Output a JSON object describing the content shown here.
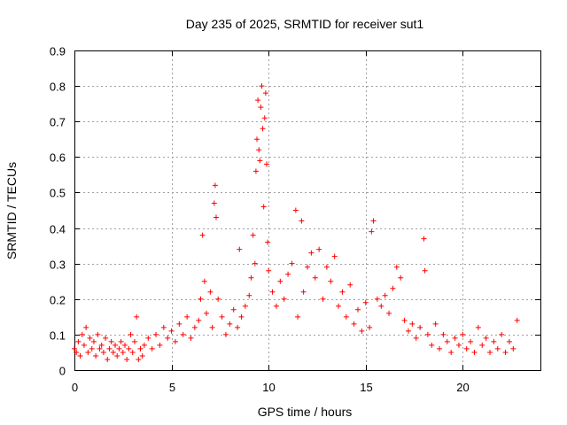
{
  "chart_data": {
    "type": "scatter",
    "title": "Day 235 of 2025, SRMTID for receiver sut1",
    "xlabel": "GPS time / hours",
    "ylabel": "SRMTID / TECUs",
    "xlim": [
      0,
      24
    ],
    "ylim": [
      0,
      0.9
    ],
    "xticks": [
      0,
      5,
      10,
      15,
      20
    ],
    "yticks": [
      0,
      0.1,
      0.2,
      0.3,
      0.4,
      0.5,
      0.6,
      0.7,
      0.8,
      0.9
    ],
    "xtick_labels": [
      "0",
      "5",
      "10",
      "15",
      "20"
    ],
    "ytick_labels": [
      "0",
      "0.1",
      "0.2",
      "0.3",
      "0.4",
      "0.5",
      "0.6",
      "0.7",
      "0.8",
      "0.9"
    ],
    "grid": true,
    "marker": "plus",
    "series": [
      {
        "name": "sut1",
        "color": "#ff0000",
        "points": [
          [
            0.0,
            0.06
          ],
          [
            0.1,
            0.05
          ],
          [
            0.2,
            0.08
          ],
          [
            0.3,
            0.04
          ],
          [
            0.4,
            0.1
          ],
          [
            0.5,
            0.07
          ],
          [
            0.6,
            0.12
          ],
          [
            0.7,
            0.05
          ],
          [
            0.8,
            0.09
          ],
          [
            0.9,
            0.06
          ],
          [
            1.0,
            0.08
          ],
          [
            1.1,
            0.04
          ],
          [
            1.2,
            0.1
          ],
          [
            1.3,
            0.06
          ],
          [
            1.4,
            0.07
          ],
          [
            1.5,
            0.05
          ],
          [
            1.6,
            0.09
          ],
          [
            1.7,
            0.03
          ],
          [
            1.8,
            0.06
          ],
          [
            1.9,
            0.08
          ],
          [
            2.0,
            0.05
          ],
          [
            2.1,
            0.07
          ],
          [
            2.2,
            0.04
          ],
          [
            2.3,
            0.06
          ],
          [
            2.4,
            0.08
          ],
          [
            2.5,
            0.05
          ],
          [
            2.6,
            0.07
          ],
          [
            2.7,
            0.03
          ],
          [
            2.8,
            0.06
          ],
          [
            2.9,
            0.1
          ],
          [
            3.0,
            0.05
          ],
          [
            3.1,
            0.08
          ],
          [
            3.2,
            0.15
          ],
          [
            3.3,
            0.03
          ],
          [
            3.4,
            0.06
          ],
          [
            3.5,
            0.04
          ],
          [
            3.6,
            0.07
          ],
          [
            3.8,
            0.09
          ],
          [
            4.0,
            0.06
          ],
          [
            4.2,
            0.1
          ],
          [
            4.4,
            0.07
          ],
          [
            4.6,
            0.12
          ],
          [
            4.8,
            0.09
          ],
          [
            5.0,
            0.11
          ],
          [
            5.2,
            0.08
          ],
          [
            5.4,
            0.13
          ],
          [
            5.6,
            0.1
          ],
          [
            5.8,
            0.15
          ],
          [
            6.0,
            0.09
          ],
          [
            6.2,
            0.12
          ],
          [
            6.4,
            0.14
          ],
          [
            6.5,
            0.2
          ],
          [
            6.6,
            0.38
          ],
          [
            6.7,
            0.25
          ],
          [
            6.8,
            0.16
          ],
          [
            7.0,
            0.22
          ],
          [
            7.1,
            0.12
          ],
          [
            7.2,
            0.47
          ],
          [
            7.25,
            0.52
          ],
          [
            7.3,
            0.43
          ],
          [
            7.4,
            0.2
          ],
          [
            7.6,
            0.15
          ],
          [
            7.8,
            0.1
          ],
          [
            8.0,
            0.13
          ],
          [
            8.2,
            0.17
          ],
          [
            8.4,
            0.12
          ],
          [
            8.5,
            0.34
          ],
          [
            8.6,
            0.15
          ],
          [
            8.8,
            0.18
          ],
          [
            9.0,
            0.21
          ],
          [
            9.1,
            0.26
          ],
          [
            9.2,
            0.38
          ],
          [
            9.3,
            0.3
          ],
          [
            9.35,
            0.56
          ],
          [
            9.4,
            0.65
          ],
          [
            9.45,
            0.76
          ],
          [
            9.5,
            0.62
          ],
          [
            9.55,
            0.59
          ],
          [
            9.6,
            0.74
          ],
          [
            9.65,
            0.8
          ],
          [
            9.7,
            0.68
          ],
          [
            9.75,
            0.46
          ],
          [
            9.8,
            0.71
          ],
          [
            9.85,
            0.78
          ],
          [
            9.9,
            0.58
          ],
          [
            9.95,
            0.36
          ],
          [
            10.0,
            0.28
          ],
          [
            10.2,
            0.22
          ],
          [
            10.4,
            0.18
          ],
          [
            10.6,
            0.25
          ],
          [
            10.8,
            0.2
          ],
          [
            11.0,
            0.27
          ],
          [
            11.2,
            0.3
          ],
          [
            11.4,
            0.45
          ],
          [
            11.5,
            0.15
          ],
          [
            11.7,
            0.42
          ],
          [
            11.8,
            0.22
          ],
          [
            12.0,
            0.29
          ],
          [
            12.2,
            0.33
          ],
          [
            12.4,
            0.26
          ],
          [
            12.6,
            0.34
          ],
          [
            12.8,
            0.2
          ],
          [
            13.0,
            0.29
          ],
          [
            13.2,
            0.25
          ],
          [
            13.4,
            0.32
          ],
          [
            13.6,
            0.18
          ],
          [
            13.8,
            0.22
          ],
          [
            14.0,
            0.15
          ],
          [
            14.2,
            0.24
          ],
          [
            14.4,
            0.13
          ],
          [
            14.6,
            0.17
          ],
          [
            14.8,
            0.11
          ],
          [
            15.0,
            0.19
          ],
          [
            15.2,
            0.12
          ],
          [
            15.3,
            0.39
          ],
          [
            15.4,
            0.42
          ],
          [
            15.6,
            0.2
          ],
          [
            15.8,
            0.18
          ],
          [
            16.0,
            0.21
          ],
          [
            16.2,
            0.16
          ],
          [
            16.4,
            0.23
          ],
          [
            16.6,
            0.29
          ],
          [
            16.8,
            0.26
          ],
          [
            17.0,
            0.14
          ],
          [
            17.2,
            0.11
          ],
          [
            17.4,
            0.13
          ],
          [
            17.6,
            0.09
          ],
          [
            17.8,
            0.12
          ],
          [
            18.0,
            0.37
          ],
          [
            18.05,
            0.28
          ],
          [
            18.2,
            0.1
          ],
          [
            18.4,
            0.07
          ],
          [
            18.6,
            0.13
          ],
          [
            18.8,
            0.06
          ],
          [
            19.0,
            0.1
          ],
          [
            19.2,
            0.08
          ],
          [
            19.4,
            0.05
          ],
          [
            19.6,
            0.09
          ],
          [
            19.8,
            0.07
          ],
          [
            20.0,
            0.1
          ],
          [
            20.2,
            0.06
          ],
          [
            20.4,
            0.08
          ],
          [
            20.6,
            0.05
          ],
          [
            20.8,
            0.12
          ],
          [
            21.0,
            0.07
          ],
          [
            21.2,
            0.09
          ],
          [
            21.4,
            0.05
          ],
          [
            21.6,
            0.08
          ],
          [
            21.8,
            0.06
          ],
          [
            22.0,
            0.1
          ],
          [
            22.2,
            0.05
          ],
          [
            22.4,
            0.08
          ],
          [
            22.6,
            0.06
          ],
          [
            22.8,
            0.14
          ]
        ]
      }
    ]
  }
}
